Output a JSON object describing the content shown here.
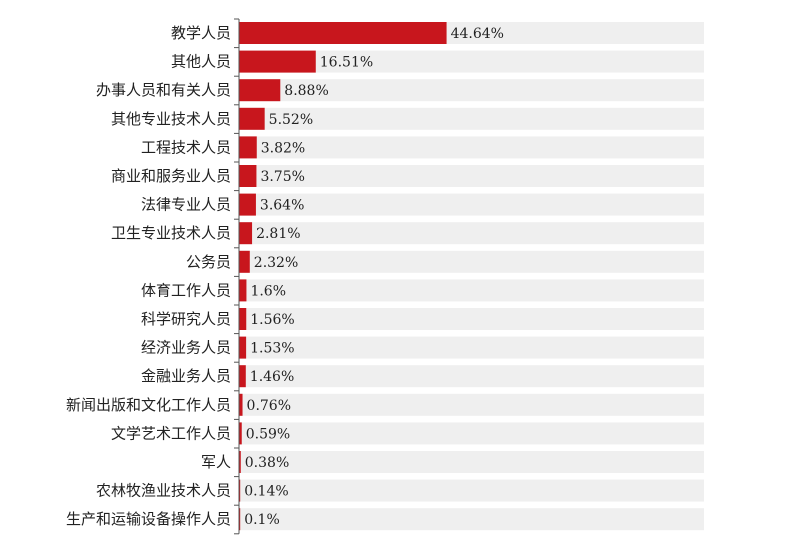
{
  "chart_data": {
    "type": "bar",
    "orientation": "horizontal",
    "categories": [
      "教学人员",
      "其他人员",
      "办事人员和有关人员",
      "其他专业技术人员",
      "工程技术人员",
      "商业和服务业人员",
      "法律专业人员",
      "卫生专业技术人员",
      "公务员",
      "体育工作人员",
      "科学研究人员",
      "经济业务人员",
      "金融业务人员",
      "新闻出版和文化工作人员",
      "文学艺术工作人员",
      "军人",
      "农林牧渔业技术人员",
      "生产和运输设备操作人员"
    ],
    "values": [
      44.64,
      16.51,
      8.88,
      5.52,
      3.82,
      3.75,
      3.64,
      2.81,
      2.32,
      1.6,
      1.56,
      1.53,
      1.46,
      0.76,
      0.59,
      0.38,
      0.14,
      0.1
    ],
    "value_labels": [
      "44.64%",
      "16.51%",
      "8.88%",
      "5.52%",
      "3.82%",
      "3.75%",
      "3.64%",
      "2.81%",
      "2.32%",
      "1.6%",
      "1.56%",
      "1.53%",
      "1.46%",
      "0.76%",
      "0.59%",
      "0.38%",
      "0.14%",
      "0.1%"
    ],
    "xlim": [
      0,
      100
    ],
    "title": "",
    "xlabel": "",
    "ylabel": "",
    "grid": false,
    "legend": "none",
    "colors": {
      "bar": "#c8161d",
      "track": "#efefef",
      "axis": "#555555",
      "text": "#222222"
    }
  }
}
